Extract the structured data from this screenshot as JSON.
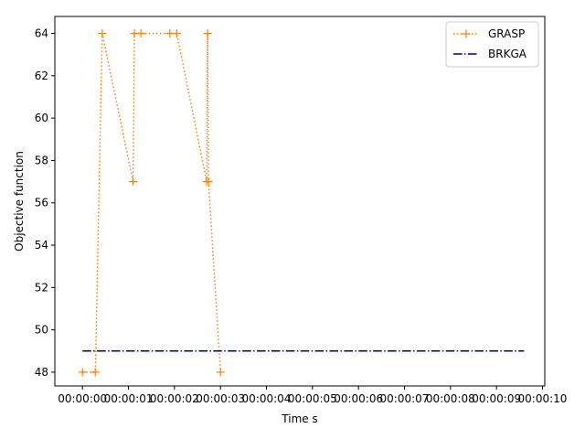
{
  "chart_data": {
    "type": "line",
    "title": "",
    "xlabel": "Time s",
    "ylabel": "Objective function",
    "x_tick_labels": [
      "00:00:00",
      "00:00:01",
      "00:00:02",
      "00:00:03",
      "00:00:04",
      "00:00:05",
      "00:00:06",
      "00:00:07",
      "00:00:08",
      "00:00:09",
      "00:00:10"
    ],
    "x_tick_values": [
      0,
      1,
      2,
      3,
      4,
      5,
      6,
      7,
      8,
      9,
      10
    ],
    "xlim": [
      -0.6,
      10.05
    ],
    "y_ticks": [
      48,
      50,
      52,
      54,
      56,
      58,
      60,
      62,
      64
    ],
    "ylim": [
      47.35,
      64.8
    ],
    "grid": false,
    "legend_position": "top-right",
    "series": [
      {
        "name": "GRASP",
        "color": "#ff7f0e",
        "linestyle": "dotted",
        "marker": "+",
        "x": [
          0.0,
          0.28,
          0.43,
          1.1,
          1.13,
          1.27,
          1.9,
          2.05,
          2.7,
          2.72,
          2.74,
          3.0
        ],
        "y": [
          48,
          48,
          64,
          57,
          64,
          64,
          64,
          64,
          57,
          64,
          57,
          48
        ]
      },
      {
        "name": "BRKGA",
        "color": "#00008b",
        "linestyle": "dashdot",
        "marker": "",
        "x": [
          0.0,
          9.6
        ],
        "y": [
          49,
          49
        ]
      }
    ]
  }
}
